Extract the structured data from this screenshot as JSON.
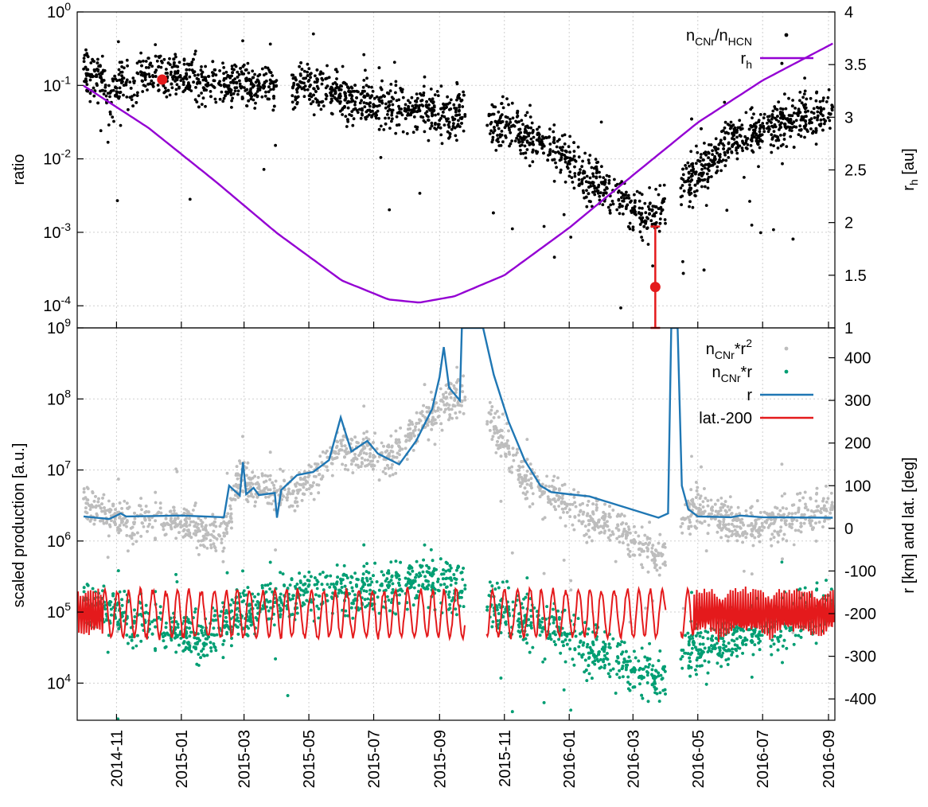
{
  "chart_data": [
    {
      "type": "scatter",
      "panel": "top",
      "xlabel": "",
      "ylabel": "ratio",
      "y_scale": "log",
      "ylim": [
        5e-05,
        1
      ],
      "y_ticks": [
        {
          "base": "10",
          "exp": "0"
        },
        {
          "base": "10",
          "exp": "-1"
        },
        {
          "base": "10",
          "exp": "-2"
        },
        {
          "base": "10",
          "exp": "-3"
        },
        {
          "base": "10",
          "exp": "-4"
        }
      ],
      "y2label": {
        "main": "r",
        "sub": "h",
        "tail": " [au]"
      },
      "y2lim": [
        1,
        4
      ],
      "y2_ticks": [
        "1",
        "1.5",
        "2",
        "2.5",
        "3",
        "3.5",
        "4"
      ],
      "grid": true,
      "legend_position": "top-right",
      "series": [
        {
          "name": {
            "a": "n",
            "a_sub": "CNr",
            "b": "/n",
            "b_sub": "HCN"
          },
          "kind": "points",
          "color": "#000000",
          "axis": "y1",
          "trend": [
            {
              "x": "2014-10-01",
              "y": 0.17
            },
            {
              "x": "2014-10-20",
              "y": 0.12
            },
            {
              "x": "2014-10-25",
              "y": 0.06
            },
            {
              "x": "2014-11-05",
              "y": 0.12
            },
            {
              "x": "2014-12-15",
              "y": 0.14
            },
            {
              "x": "2015-02-01",
              "y": 0.11
            },
            {
              "x": "2015-03-15",
              "y": 0.1
            },
            {
              "x": "2015-05-01",
              "y": 0.1
            },
            {
              "x": "2015-06-15",
              "y": 0.06
            },
            {
              "x": "2015-08-01",
              "y": 0.05
            },
            {
              "x": "2015-09-20",
              "y": 0.04
            },
            {
              "x": "2015-11-01",
              "y": 0.03
            },
            {
              "x": "2015-12-15",
              "y": 0.015
            },
            {
              "x": "2016-02-01",
              "y": 0.004
            },
            {
              "x": "2016-03-15",
              "y": 0.0015
            },
            {
              "x": "2016-05-01",
              "y": 0.006
            },
            {
              "x": "2016-06-01",
              "y": 0.02
            },
            {
              "x": "2016-07-15",
              "y": 0.03
            },
            {
              "x": "2016-09-05",
              "y": 0.05
            }
          ],
          "gaps": [
            [
              "2015-04-01",
              "2015-04-15"
            ],
            [
              "2015-09-25",
              "2015-10-15"
            ],
            [
              "2016-04-01",
              "2016-04-15"
            ]
          ]
        },
        {
          "name": {
            "a": "r",
            "a_sub": "h"
          },
          "kind": "line",
          "color": "#9400d3",
          "axis": "y2",
          "points": [
            {
              "x": "2014-10-01",
              "y": 3.3
            },
            {
              "x": "2014-12-01",
              "y": 2.9
            },
            {
              "x": "2015-02-01",
              "y": 2.4
            },
            {
              "x": "2015-04-01",
              "y": 1.9
            },
            {
              "x": "2015-06-01",
              "y": 1.45
            },
            {
              "x": "2015-07-15",
              "y": 1.27
            },
            {
              "x": "2015-08-13",
              "y": 1.24
            },
            {
              "x": "2015-09-15",
              "y": 1.3
            },
            {
              "x": "2015-11-01",
              "y": 1.5
            },
            {
              "x": "2016-01-01",
              "y": 1.95
            },
            {
              "x": "2016-03-01",
              "y": 2.45
            },
            {
              "x": "2016-05-01",
              "y": 2.95
            },
            {
              "x": "2016-07-01",
              "y": 3.35
            },
            {
              "x": "2016-09-05",
              "y": 3.7
            }
          ]
        },
        {
          "name": "",
          "kind": "highlight",
          "color": "#e41a1c",
          "axis": "y1",
          "points": [
            {
              "x": "2014-12-14",
              "y": 0.12
            },
            {
              "x": "2016-03-22",
              "y": 0.00018,
              "err_low": 5e-05,
              "err_high": 0.0012
            }
          ]
        }
      ]
    },
    {
      "type": "scatter",
      "panel": "bottom",
      "xlabel": "",
      "ylabel": "scaled production [a.u.]",
      "y_scale": "log",
      "ylim": [
        3000,
        1000000000
      ],
      "y_ticks": [
        {
          "base": "10",
          "exp": "9"
        },
        {
          "base": "10",
          "exp": "8"
        },
        {
          "base": "10",
          "exp": "7"
        },
        {
          "base": "10",
          "exp": "6"
        },
        {
          "base": "10",
          "exp": "5"
        },
        {
          "base": "10",
          "exp": "4"
        }
      ],
      "y2label": "r [km] and lat. [deg]",
      "y2lim": [
        -450,
        470
      ],
      "y2_ticks": [
        "400",
        "300",
        "200",
        "100",
        "0",
        "-100",
        "-200",
        "-300",
        "-400"
      ],
      "grid": true,
      "legend_position": "top-right",
      "x_ticks": [
        "2014-11",
        "2015-01",
        "2015-03",
        "2015-05",
        "2015-07",
        "2015-09",
        "2015-11",
        "2016-01",
        "2016-03",
        "2016-05",
        "2016-07",
        "2016-09"
      ],
      "series": [
        {
          "name": {
            "a": "n",
            "a_sub": "CNr",
            "b": "*r",
            "b_sup": "2"
          },
          "kind": "points",
          "color": "#bdbdbd",
          "axis": "y1",
          "trend": [
            {
              "x": "2014-10-01",
              "y": 4000000
            },
            {
              "x": "2014-11-01",
              "y": 2000000
            },
            {
              "x": "2014-12-15",
              "y": 2000000
            },
            {
              "x": "2015-02-10",
              "y": 1200000
            },
            {
              "x": "2015-02-25",
              "y": 8000000
            },
            {
              "x": "2015-03-20",
              "y": 5000000
            },
            {
              "x": "2015-04-20",
              "y": 5000000
            },
            {
              "x": "2015-06-01",
              "y": 20000000
            },
            {
              "x": "2015-07-15",
              "y": 15000000
            },
            {
              "x": "2015-08-20",
              "y": 60000000
            },
            {
              "x": "2015-09-15",
              "y": 120000000
            },
            {
              "x": "2015-10-20",
              "y": 50000000
            },
            {
              "x": "2015-11-20",
              "y": 8000000
            },
            {
              "x": "2016-01-01",
              "y": 3000000
            },
            {
              "x": "2016-02-15",
              "y": 1500000
            },
            {
              "x": "2016-03-25",
              "y": 600000
            },
            {
              "x": "2016-05-01",
              "y": 3000000
            },
            {
              "x": "2016-06-15",
              "y": 1500000
            },
            {
              "x": "2016-09-05",
              "y": 3000000
            }
          ],
          "gaps": [
            [
              "2015-09-25",
              "2015-10-15"
            ],
            [
              "2016-04-01",
              "2016-04-15"
            ]
          ]
        },
        {
          "name": {
            "a": "n",
            "a_sub": "CNr",
            "b": "*r"
          },
          "kind": "points",
          "color": "#009e73",
          "axis": "y1",
          "trend": [
            {
              "x": "2014-10-01",
              "y": 150000
            },
            {
              "x": "2014-12-01",
              "y": 70000
            },
            {
              "x": "2015-01-15",
              "y": 40000
            },
            {
              "x": "2015-03-01",
              "y": 100000
            },
            {
              "x": "2015-05-01",
              "y": 200000
            },
            {
              "x": "2015-07-01",
              "y": 200000
            },
            {
              "x": "2015-08-25",
              "y": 350000
            },
            {
              "x": "2015-10-25",
              "y": 120000
            },
            {
              "x": "2015-12-15",
              "y": 60000
            },
            {
              "x": "2016-02-15",
              "y": 20000
            },
            {
              "x": "2016-03-25",
              "y": 12000
            },
            {
              "x": "2016-05-01",
              "y": 30000
            },
            {
              "x": "2016-07-01",
              "y": 60000
            },
            {
              "x": "2016-09-05",
              "y": 120000
            }
          ],
          "gaps": [
            [
              "2015-09-25",
              "2015-10-15"
            ],
            [
              "2016-04-01",
              "2016-04-15"
            ]
          ]
        },
        {
          "name": "r",
          "kind": "line",
          "color": "#1f77b4",
          "axis": "y2",
          "points": [
            {
              "x": "2014-10-01",
              "y": 28
            },
            {
              "x": "2014-10-25",
              "y": 22
            },
            {
              "x": "2014-11-01",
              "y": 30
            },
            {
              "x": "2014-11-05",
              "y": 35
            },
            {
              "x": "2014-11-10",
              "y": 28
            },
            {
              "x": "2015-01-01",
              "y": 30
            },
            {
              "x": "2015-02-10",
              "y": 26
            },
            {
              "x": "2015-02-15",
              "y": 100
            },
            {
              "x": "2015-02-25",
              "y": 77
            },
            {
              "x": "2015-02-28",
              "y": 155
            },
            {
              "x": "2015-03-03",
              "y": 80
            },
            {
              "x": "2015-03-10",
              "y": 95
            },
            {
              "x": "2015-03-15",
              "y": 78
            },
            {
              "x": "2015-03-30",
              "y": 83
            },
            {
              "x": "2015-04-01",
              "y": 25
            },
            {
              "x": "2015-04-05",
              "y": 90
            },
            {
              "x": "2015-04-20",
              "y": 125
            },
            {
              "x": "2015-05-05",
              "y": 132
            },
            {
              "x": "2015-05-20",
              "y": 160
            },
            {
              "x": "2015-05-31",
              "y": 260
            },
            {
              "x": "2015-06-10",
              "y": 180
            },
            {
              "x": "2015-06-25",
              "y": 205
            },
            {
              "x": "2015-07-05",
              "y": 175
            },
            {
              "x": "2015-07-25",
              "y": 150
            },
            {
              "x": "2015-08-10",
              "y": 205
            },
            {
              "x": "2015-08-25",
              "y": 280
            },
            {
              "x": "2015-09-01",
              "y": 355
            },
            {
              "x": "2015-09-05",
              "y": 425
            },
            {
              "x": "2015-09-10",
              "y": 330
            },
            {
              "x": "2015-09-20",
              "y": 300
            },
            {
              "x": "2015-09-22",
              "y": 470
            },
            {
              "x": "2015-10-12",
              "y": 470
            },
            {
              "x": "2015-10-22",
              "y": 360
            },
            {
              "x": "2015-11-05",
              "y": 250
            },
            {
              "x": "2015-11-20",
              "y": 160
            },
            {
              "x": "2015-12-05",
              "y": 100
            },
            {
              "x": "2015-12-15",
              "y": 85
            },
            {
              "x": "2016-01-01",
              "y": 80
            },
            {
              "x": "2016-01-20",
              "y": 75
            },
            {
              "x": "2016-02-15",
              "y": 55
            },
            {
              "x": "2016-03-25",
              "y": 25
            },
            {
              "x": "2016-04-03",
              "y": 35
            },
            {
              "x": "2016-04-06",
              "y": 470
            },
            {
              "x": "2016-04-12",
              "y": 470
            },
            {
              "x": "2016-04-16",
              "y": 100
            },
            {
              "x": "2016-04-22",
              "y": 45
            },
            {
              "x": "2016-05-01",
              "y": 28
            },
            {
              "x": "2016-06-01",
              "y": 26
            },
            {
              "x": "2016-06-10",
              "y": 30
            },
            {
              "x": "2016-07-01",
              "y": 26
            },
            {
              "x": "2016-09-05",
              "y": 25
            }
          ]
        },
        {
          "name": "lat.-200",
          "kind": "line",
          "color": "#e41a1c",
          "axis": "y2",
          "mean": -200,
          "amplitude": 55,
          "gaps": [
            [
              "2015-09-25",
              "2015-10-15"
            ],
            [
              "2016-04-01",
              "2016-04-15"
            ]
          ]
        }
      ]
    }
  ]
}
